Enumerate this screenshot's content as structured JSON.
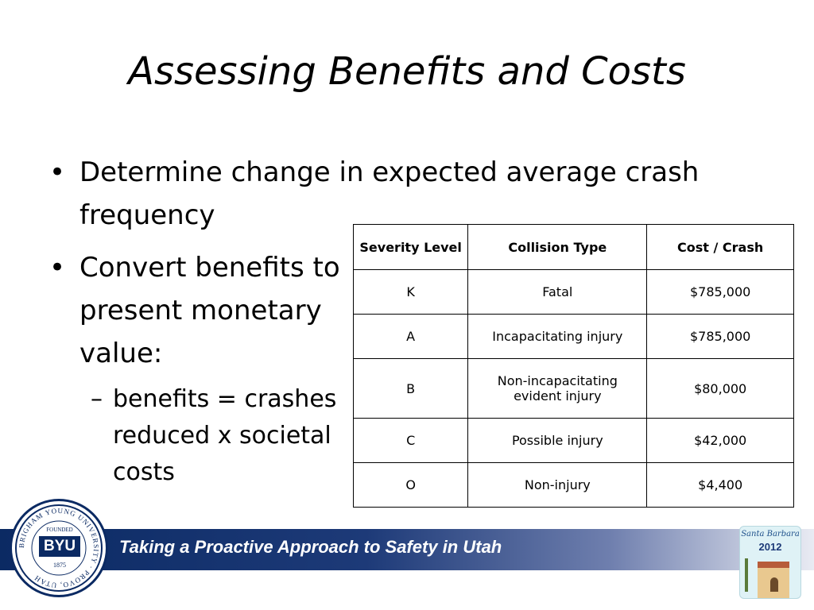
{
  "title": "Assessing Benefits and Costs",
  "bullets": [
    "Determine change in expected average crash frequency",
    "Convert benefits to present monetary value:"
  ],
  "sub_bullet": "benefits = crashes reduced x societal costs",
  "table": {
    "headers": [
      "Severity Level",
      "Collision Type",
      "Cost / Crash"
    ],
    "rows": [
      {
        "severity": "K",
        "type": "Fatal",
        "cost": "$785,000"
      },
      {
        "severity": "A",
        "type": "Incapacitating injury",
        "cost": "$785,000"
      },
      {
        "severity": "B",
        "type": "Non-incapacitating evident injury",
        "cost": "$80,000"
      },
      {
        "severity": "C",
        "type": "Possible injury",
        "cost": "$42,000"
      },
      {
        "severity": "O",
        "type": "Non-injury",
        "cost": "$4,400"
      }
    ]
  },
  "footer": {
    "text": "Taking a Proactive Approach to Safety in Utah",
    "seal": {
      "ring_text": "BRIGHAM YOUNG UNIVERSITY · PROVO, UTAH",
      "founded": "FOUNDED",
      "name": "BYU",
      "year": "1875"
    },
    "badge": {
      "script": "Santa Barbara",
      "year": "2012"
    }
  },
  "colors": {
    "footer_navy": "#0b2a63",
    "text": "#000000"
  }
}
